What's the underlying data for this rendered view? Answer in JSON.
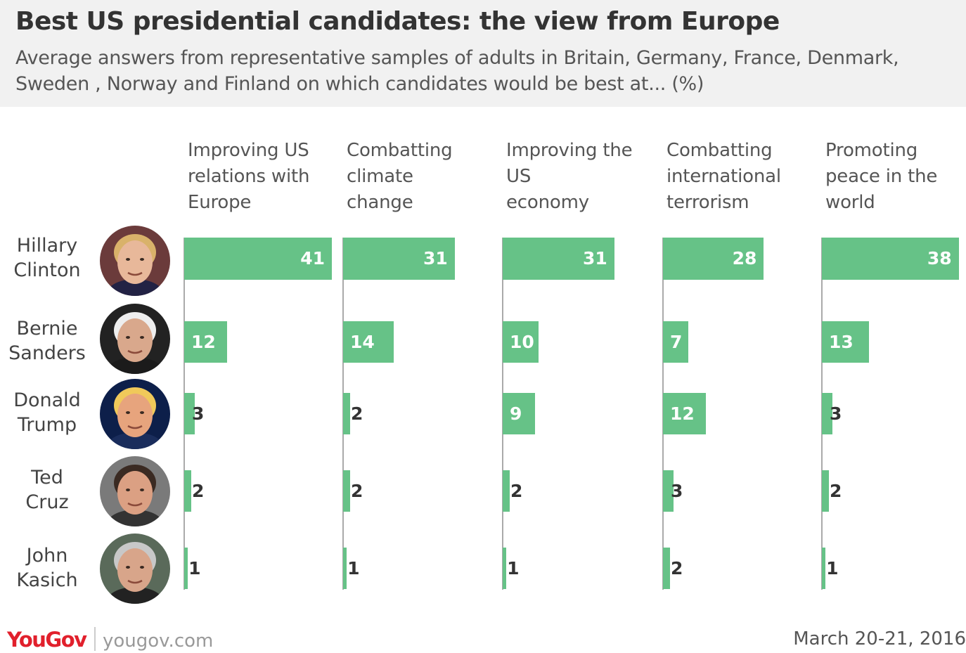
{
  "title": "Best US presidential candidates: the view from Europe",
  "subtitle": "Average answers from representative samples of adults in Britain, Germany, France, Denmark, Sweden , Norway and Finland on which candidates would be best at... (%)",
  "footer": {
    "logo": "YouGov",
    "url": "yougov.com",
    "date": "March 20-21, 2016"
  },
  "colors": {
    "bar": "#66c287",
    "header_bg": "#f1f1f1",
    "logo": "#e1202c"
  },
  "chart_data": {
    "type": "bar",
    "orientation": "horizontal",
    "layout": "small-multiples",
    "categories": [
      "Hillary\nClinton",
      "Bernie\nSanders",
      "Donald\nTrump",
      "Ted\nCruz",
      "John\nKasich"
    ],
    "avatars": [
      "clinton-portrait-icon",
      "sanders-portrait-icon",
      "trump-portrait-icon",
      "cruz-portrait-icon",
      "kasich-portrait-icon"
    ],
    "series": [
      {
        "name": "Improving US\nrelations with\nEurope",
        "values": [
          41,
          12,
          3,
          2,
          1
        ]
      },
      {
        "name": "Combatting\nclimate\nchange",
        "values": [
          31,
          14,
          2,
          2,
          1
        ]
      },
      {
        "name": "Improving the\nUS\neconomy",
        "values": [
          31,
          10,
          9,
          2,
          1
        ]
      },
      {
        "name": "Combatting\ninternational\nterrorism",
        "values": [
          28,
          7,
          12,
          3,
          2
        ]
      },
      {
        "name": "Promoting\npeace in the\nworld",
        "values": [
          38,
          13,
          3,
          2,
          1
        ]
      }
    ],
    "xlim": [
      0,
      41
    ],
    "grid": false,
    "legend": "none"
  }
}
